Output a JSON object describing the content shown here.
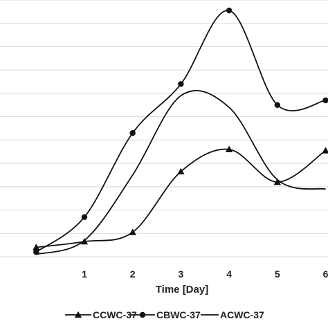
{
  "chart_data": {
    "type": "line",
    "title": "",
    "xlabel": "Time [Day]",
    "ylabel": "",
    "x": [
      0,
      1,
      2,
      3,
      4,
      5,
      6
    ],
    "xlim": [
      -0.75,
      6.05
    ],
    "ylim": [
      0,
      11
    ],
    "grid": "horizontal",
    "legend": "bottom",
    "series": [
      {
        "name": "CCWC-37",
        "marker": "triangle",
        "smooth": true,
        "values": [
          0.4,
          0.65,
          1.05,
          3.65,
          4.6,
          3.2,
          4.55
        ]
      },
      {
        "name": "CBWC-37",
        "marker": "circle",
        "smooth": true,
        "values": [
          0.2,
          1.7,
          5.3,
          7.4,
          10.55,
          6.5,
          6.7
        ]
      },
      {
        "name": "ACWC-37",
        "marker": "none",
        "smooth": true,
        "values": [
          0.1,
          0.7,
          3.5,
          6.9,
          6.4,
          3.3,
          2.9
        ]
      }
    ],
    "x_tick_labels": [
      "1",
      "2",
      "3",
      "4",
      "5",
      "6"
    ],
    "colors": {
      "line": "#111111",
      "grid": "#d9d9d9"
    }
  }
}
